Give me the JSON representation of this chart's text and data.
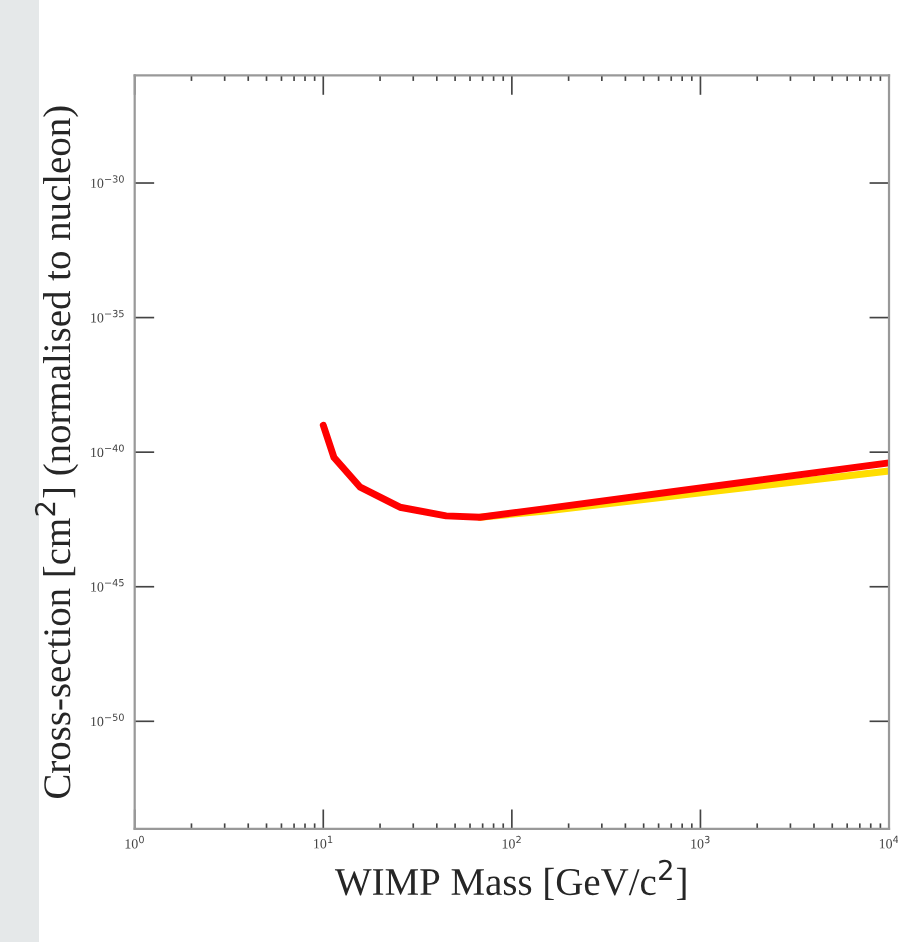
{
  "chart_data": {
    "type": "line",
    "xlabel": "WIMP Mass [GeV/c$^{2}$]",
    "ylabel": "Cross-section [cm$^{2}$] (normalised to nucleon)",
    "log": "xy",
    "xlim": [
      1,
      10000
    ],
    "ylim": [
      1e-54,
      1e-26
    ],
    "xticks": [
      {
        "value": 1,
        "label": "10$^{0}$"
      },
      {
        "value": 10,
        "label": "10$^{1}$"
      },
      {
        "value": 100,
        "label": "10$^{2}$"
      },
      {
        "value": 1000,
        "label": "10$^{3}$"
      },
      {
        "value": 10000,
        "label": "10$^{4}$"
      }
    ],
    "yticks": [
      {
        "value": 1e-30,
        "label": "10$^{−30}$"
      },
      {
        "value": 1e-35,
        "label": "10$^{−35}$"
      },
      {
        "value": 1e-40,
        "label": "10$^{−40}$"
      },
      {
        "value": 1e-45,
        "label": "10$^{−45}$"
      },
      {
        "value": 1e-50,
        "label": "10$^{−50}$"
      }
    ],
    "grid": false,
    "line_style": "solid",
    "series": [
      {
        "color": "#ffdd00",
        "x": [
          67.8,
          151,
          776,
          10000
        ],
        "values": [
          3.8e-43,
          6.5e-43,
          2.5e-42,
          2e-41
        ]
      },
      {
        "color": "#ff0000",
        "x": [
          10,
          11.4,
          15.7,
          25.5,
          44.8,
          67.8,
          151,
          776,
          10000
        ],
        "values": [
          1e-39,
          6.3e-41,
          5e-42,
          9e-43,
          4.3e-43,
          3.8e-43,
          8e-43,
          3.7e-42,
          4e-41
        ]
      }
    ]
  }
}
